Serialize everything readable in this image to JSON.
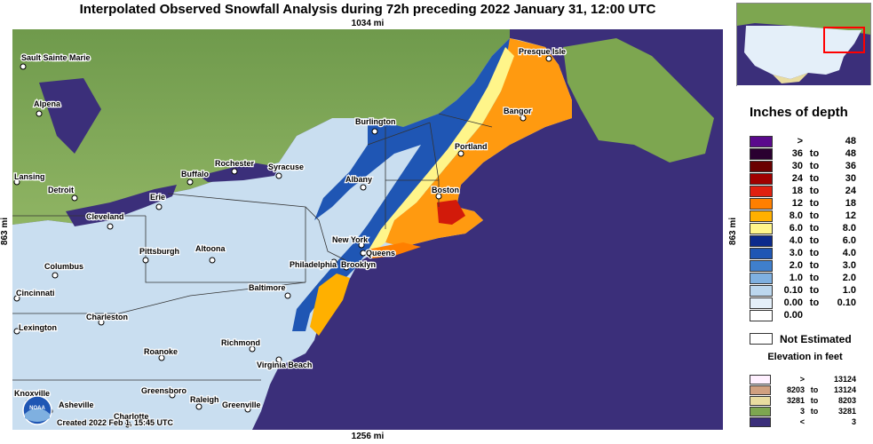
{
  "title": "Interpolated Observed Snowfall Analysis during 72h preceding 2022 January 31, 12:00 UTC",
  "distances": {
    "top": "1034 mi",
    "bottom": "1256 mi",
    "left": "863 mi",
    "right": "863 mi"
  },
  "credit": "Created 2022 Feb 1, 15:45 UTC",
  "logo_text": "NOAA",
  "cities": [
    "Sault Sainte Marie",
    "Presque Isle",
    "Alpena",
    "Bangor",
    "Burlington",
    "Portland",
    "Lansing",
    "Detroit",
    "Rochester",
    "Syracuse",
    "Buffalo",
    "Albany",
    "Erie",
    "Boston",
    "Cleveland",
    "New York",
    "Queens",
    "Pittsburgh",
    "Altoona",
    "Brooklyn",
    "Philadelphia",
    "Columbus",
    "Baltimore",
    "Cincinnati",
    "Charleston",
    "Lexington",
    "Richmond",
    "Roanoke",
    "Virginia Beach",
    "Knoxville",
    "Greensboro",
    "Asheville",
    "Raleigh",
    "Greenville",
    "Charlotte"
  ],
  "legend": {
    "title": "Inches of depth",
    "connector": "to",
    "rows": [
      {
        "lo": ">",
        "hi": "48",
        "color": "#5a0a8c"
      },
      {
        "lo": "36",
        "hi": "48",
        "color": "#2a0030"
      },
      {
        "lo": "30",
        "hi": "36",
        "color": "#6a0000"
      },
      {
        "lo": "24",
        "hi": "30",
        "color": "#a00000"
      },
      {
        "lo": "18",
        "hi": "24",
        "color": "#e02010"
      },
      {
        "lo": "12",
        "hi": "18",
        "color": "#ff7f00"
      },
      {
        "lo": "8.0",
        "hi": "12",
        "color": "#ffb000"
      },
      {
        "lo": "6.0",
        "hi": "8.0",
        "color": "#fff58a"
      },
      {
        "lo": "4.0",
        "hi": "6.0",
        "color": "#0c2a8c"
      },
      {
        "lo": "3.0",
        "hi": "4.0",
        "color": "#1f56b4"
      },
      {
        "lo": "2.0",
        "hi": "3.0",
        "color": "#3f7fcc"
      },
      {
        "lo": "1.0",
        "hi": "2.0",
        "color": "#7fb0e0"
      },
      {
        "lo": "0.10",
        "hi": "1.0",
        "color": "#bcd7ee"
      },
      {
        "lo": "0.00",
        "hi": "0.10",
        "color": "#e4eff9"
      },
      {
        "lo": "0.00",
        "hi": "",
        "color": "#ffffff"
      }
    ],
    "not_estimated": "Not Estimated",
    "elevation_title": "Elevation in feet",
    "elevation_rows": [
      {
        "lo": ">",
        "hi": "13124",
        "color": "#fff0ff"
      },
      {
        "lo": "8203",
        "hi": "13124",
        "color": "#d0a080"
      },
      {
        "lo": "3281",
        "hi": "8203",
        "color": "#e8dca0"
      },
      {
        "lo": "3",
        "hi": "3281",
        "color": "#7da650"
      },
      {
        "lo": "<",
        "hi": "3",
        "color": "#3b2f7a"
      }
    ]
  }
}
